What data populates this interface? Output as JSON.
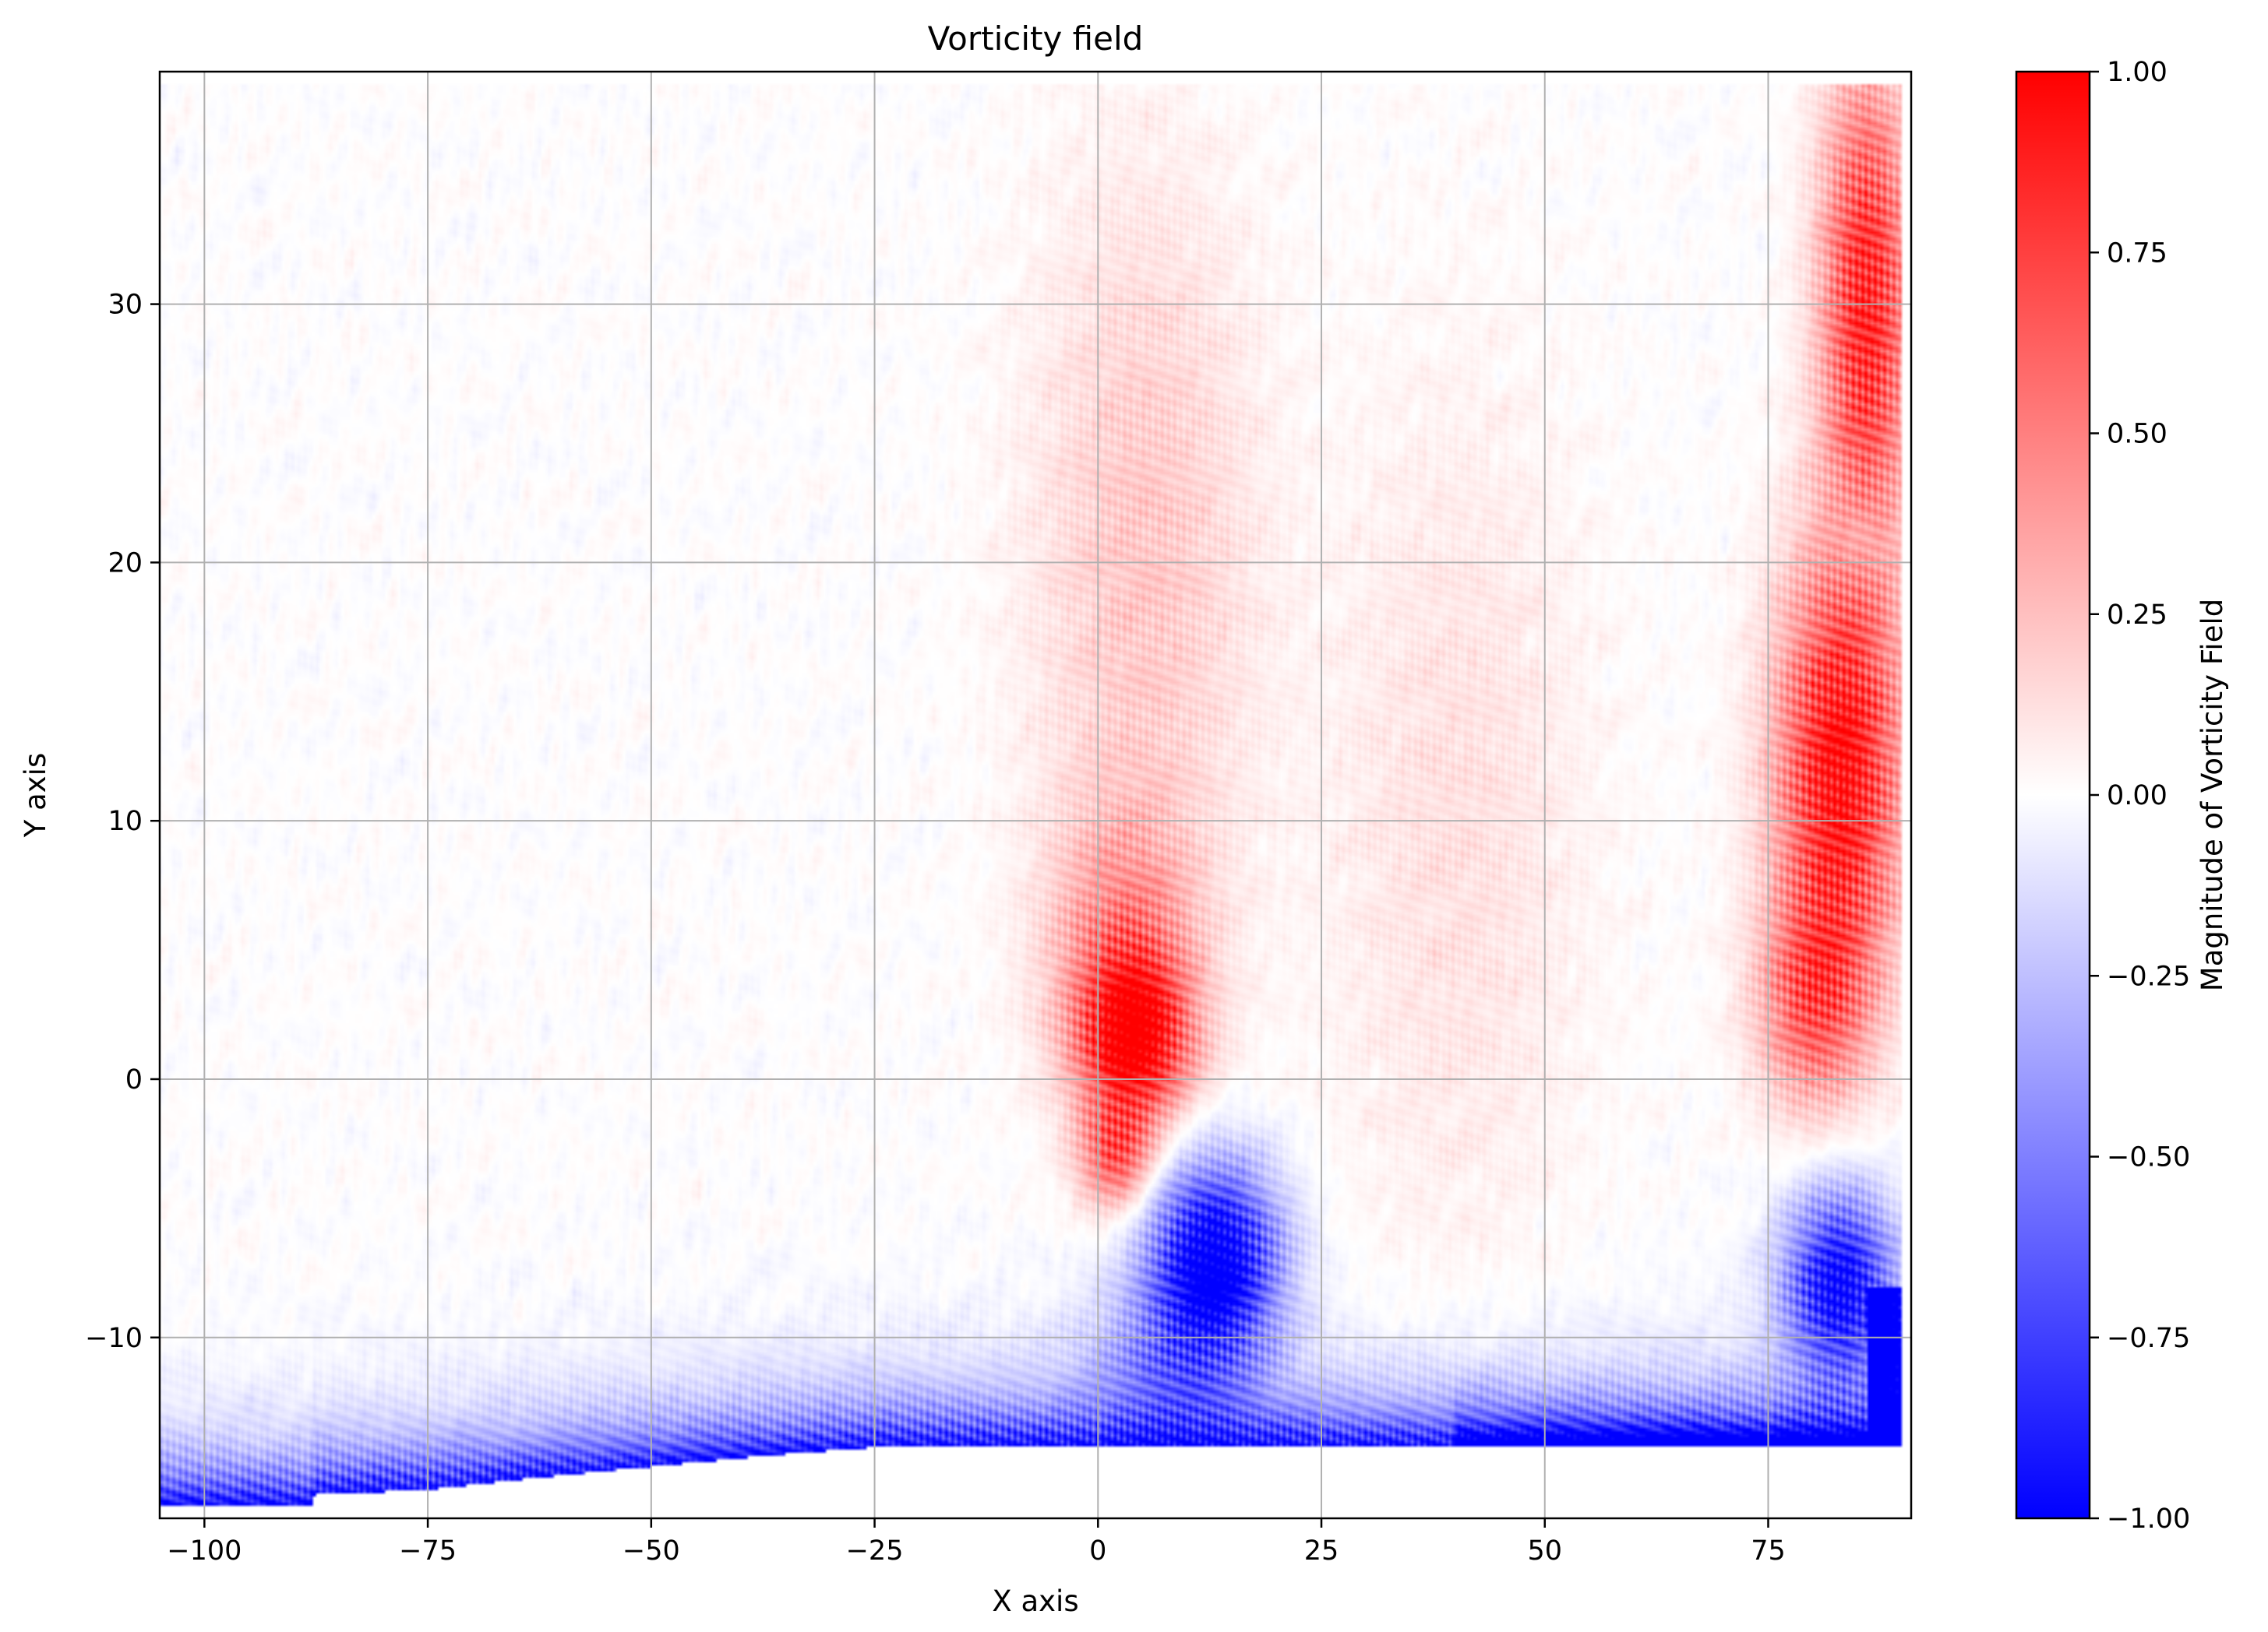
{
  "chart_data": {
    "type": "heatmap",
    "title": "Vorticity field",
    "xlabel": "X axis",
    "ylabel": "Y axis",
    "xlim": [
      -105,
      91
    ],
    "ylim": [
      -17,
      39
    ],
    "x_ticks": [
      -100,
      -75,
      -50,
      -25,
      0,
      25,
      50,
      75
    ],
    "x_tick_labels": [
      "−100",
      "−75",
      "−50",
      "−25",
      "0",
      "25",
      "50",
      "75"
    ],
    "y_ticks": [
      -10,
      0,
      10,
      20,
      30
    ],
    "y_tick_labels": [
      "−10",
      "0",
      "10",
      "20",
      "30"
    ],
    "grid": true,
    "colormap": "bwr",
    "colors": {
      "negative": "#0000ff",
      "zero": "#ffffff",
      "positive": "#ff0000"
    },
    "colorbar": {
      "label": "Magnitude of Vorticity Field",
      "range": [
        -1,
        1
      ],
      "ticks": [
        -1,
        -0.75,
        -0.5,
        -0.25,
        0,
        0.25,
        0.5,
        0.75,
        1
      ],
      "tick_labels": [
        "−1.00",
        "−0.75",
        "−0.50",
        "−0.25",
        "0.00",
        "0.25",
        "0.50",
        "0.75",
        "1.00"
      ]
    },
    "data_extent": {
      "x": [
        -105,
        90
      ],
      "y_top": 38.5
    },
    "boundary": {
      "description_points": [
        [
          -105,
          -16.5
        ],
        [
          -88,
          -16.5
        ],
        [
          -88,
          -16.1
        ],
        [
          -75,
          -15.9
        ],
        [
          -62,
          -15.4
        ],
        [
          -50,
          -15.0
        ],
        [
          -38,
          -14.6
        ],
        [
          -23,
          -14.2
        ],
        [
          90,
          -14.2
        ]
      ]
    },
    "features": [
      {
        "label": "positive vortex core",
        "x": 4,
        "y": 1.5,
        "value": 0.95,
        "rx": 7,
        "ry": 3.5
      },
      {
        "label": "negative vortex core",
        "x": 13,
        "y": -7,
        "value": -0.95,
        "rx": 7,
        "ry": 4
      },
      {
        "label": "right positive band",
        "x": 83,
        "y": 18,
        "value": 0.85,
        "rx": 7,
        "ry": 20
      },
      {
        "label": "lower-right negative",
        "x": 83,
        "y": -8,
        "value": -0.9,
        "rx": 7,
        "ry": 4
      },
      {
        "label": "bottom negative layer",
        "x": -40,
        "y": -14,
        "value": -0.8,
        "rx": 70,
        "ry": 1.5
      }
    ]
  }
}
